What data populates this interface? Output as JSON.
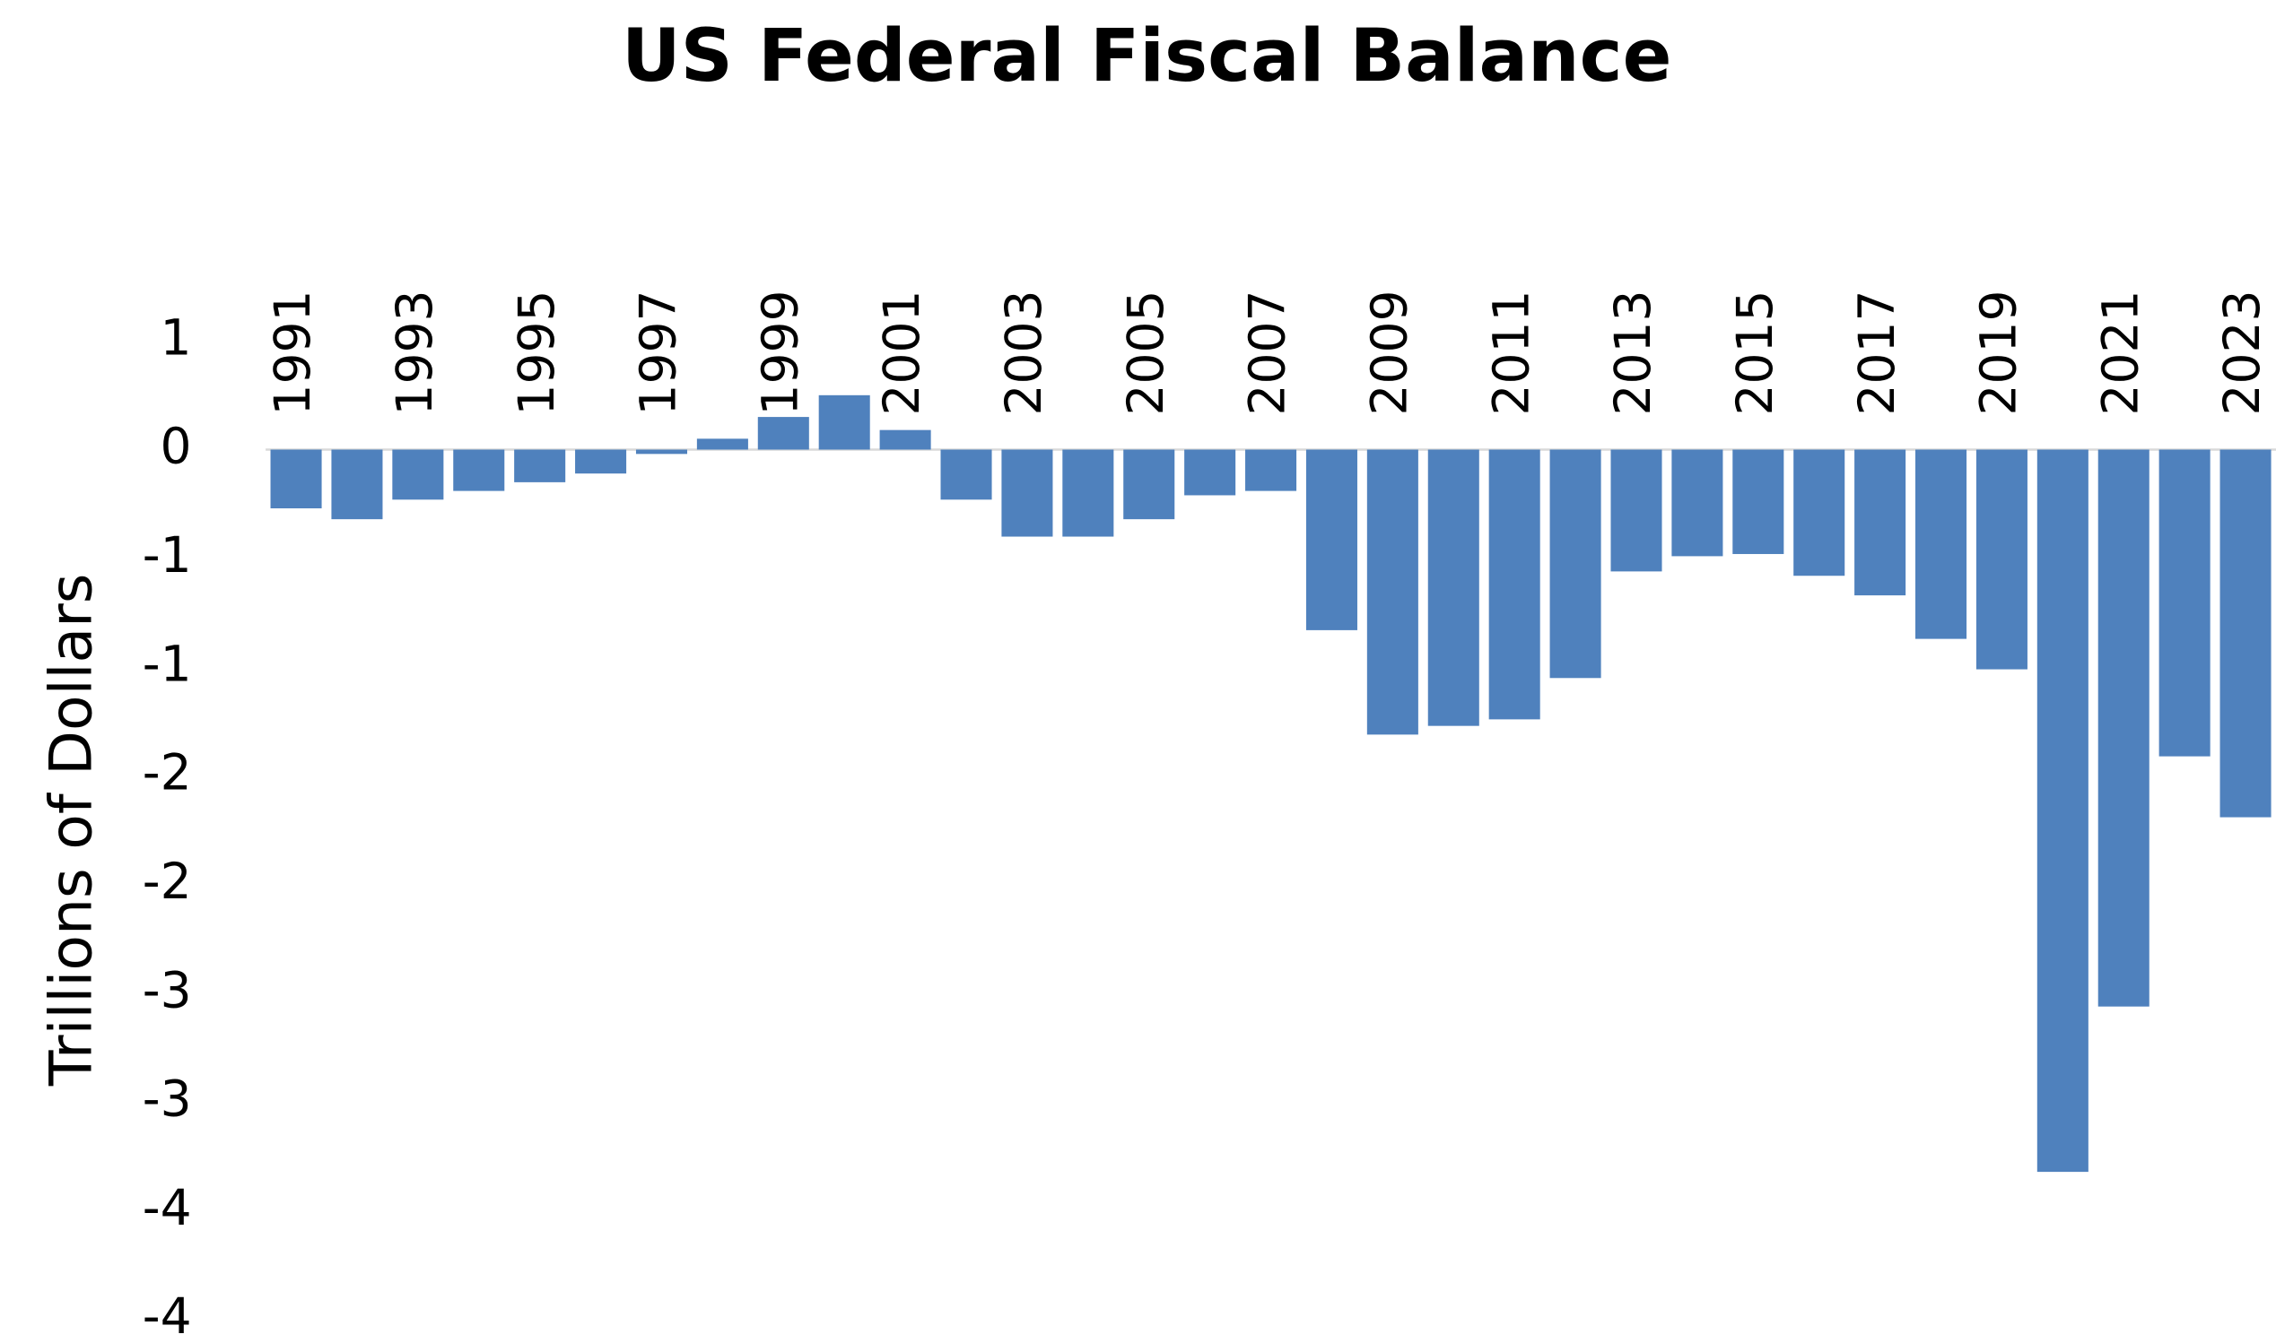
{
  "chart_data": {
    "type": "bar",
    "title": "US Federal Fiscal Balance",
    "y_label": "Trillions of Dollars",
    "categories": [
      "1991",
      null,
      "1993",
      null,
      "1995",
      null,
      "1997",
      null,
      "1999",
      null,
      "2001",
      null,
      "2003",
      null,
      "2005",
      null,
      "2007",
      null,
      "2009",
      null,
      "2011",
      null,
      "2013",
      null,
      "2015",
      null,
      "2017",
      null,
      "2019",
      null,
      "2021",
      null,
      "2023"
    ],
    "values": [
      -0.27,
      -0.32,
      -0.23,
      -0.19,
      -0.15,
      -0.11,
      -0.02,
      0.05,
      0.15,
      0.25,
      0.09,
      -0.23,
      -0.4,
      -0.4,
      -0.32,
      -0.21,
      -0.19,
      -0.83,
      -1.31,
      -1.27,
      -1.24,
      -1.05,
      -0.56,
      -0.49,
      -0.48,
      -0.58,
      -0.67,
      -0.87,
      -1.01,
      -3.32,
      -2.56,
      -1.41,
      -1.69
    ],
    "color": "#4f81bd",
    "ylim": [
      -4,
      0.5
    ],
    "yticks": [
      {
        "value": 0.5,
        "label": "1"
      },
      0,
      {
        "value": -0.5,
        "label": "-1"
      },
      -1,
      {
        "value": -1.5,
        "label": "-2"
      },
      -2,
      {
        "value": -2.5,
        "label": "-3"
      },
      -3,
      {
        "value": -3.5,
        "label": "-4"
      },
      -4
    ],
    "grid": false
  }
}
